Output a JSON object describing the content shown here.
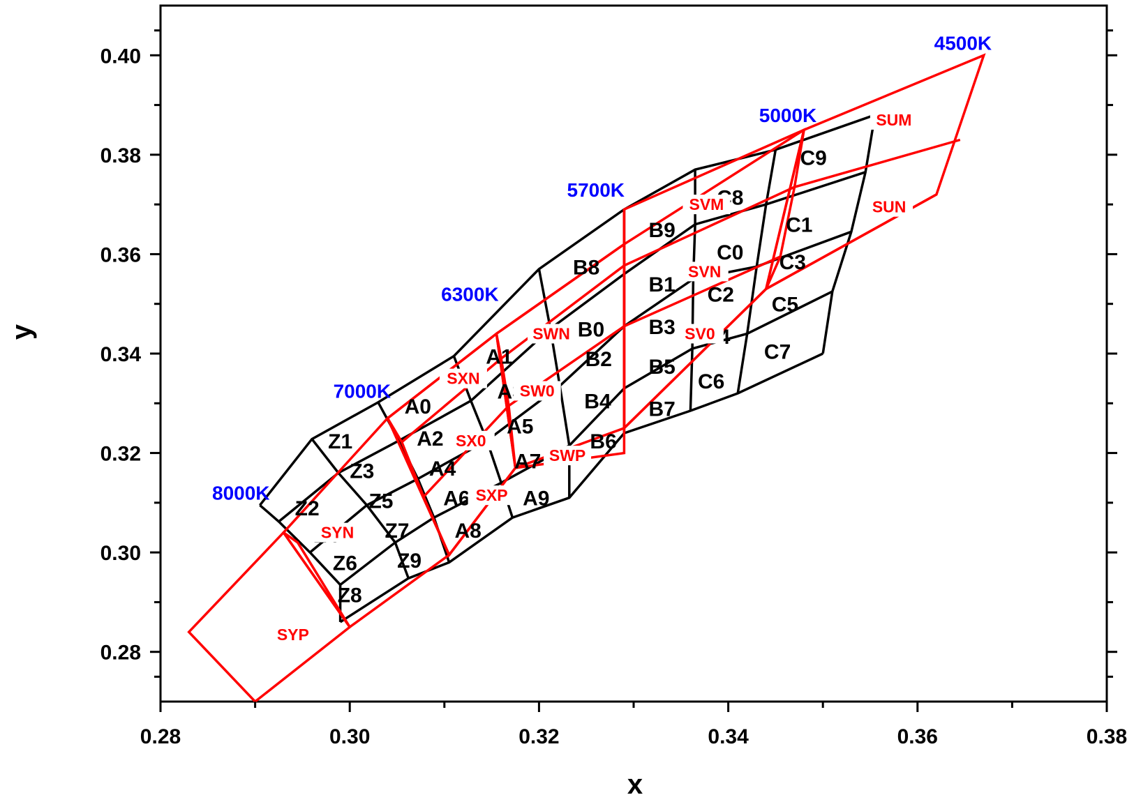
{
  "chart_data": {
    "type": "scatter",
    "title": "",
    "xlabel": "x",
    "ylabel": "y",
    "xlim": [
      0.28,
      0.38
    ],
    "ylim": [
      0.27,
      0.41
    ],
    "x_ticks": [
      "0.28",
      "0.30",
      "0.32",
      "0.34",
      "0.36",
      "0.38"
    ],
    "y_ticks": [
      "0.28",
      "0.30",
      "0.32",
      "0.34",
      "0.36",
      "0.38",
      "0.40"
    ],
    "x_tick_values": [
      0.28,
      0.3,
      0.32,
      0.34,
      0.36,
      0.38
    ],
    "y_tick_values": [
      0.28,
      0.3,
      0.32,
      0.34,
      0.36,
      0.38,
      0.4
    ],
    "grid": false,
    "colors": {
      "bins": "#000000",
      "regions": "#ff0000",
      "cct_labels": "#0000ff"
    },
    "series": [
      {
        "name": "bins",
        "columns": [
          [
            [
              0.2905,
              0.3095
            ],
            [
              0.2925,
              0.3062
            ],
            [
              0.2958,
              0.3
            ],
            [
              0.299,
              0.2935
            ],
            [
              0.299,
              0.286
            ]
          ],
          [
            [
              0.296,
              0.3228
            ],
            [
              0.2988,
              0.316
            ],
            [
              0.3018,
              0.3095
            ],
            [
              0.3048,
              0.302
            ],
            [
              0.3062,
              0.2948
            ]
          ],
          [
            [
              0.303,
              0.3302
            ],
            [
              0.3052,
              0.3225
            ],
            [
              0.3072,
              0.3148
            ],
            [
              0.3089,
              0.307
            ],
            [
              0.3105,
              0.298
            ]
          ],
          [
            [
              0.311,
              0.3395
            ],
            [
              0.3128,
              0.3305
            ],
            [
              0.3145,
              0.3225
            ],
            [
              0.316,
              0.314
            ],
            [
              0.3172,
              0.307
            ]
          ],
          [
            [
              0.32,
              0.357
            ],
            [
              0.3212,
              0.345
            ],
            [
              0.3222,
              0.3335
            ],
            [
              0.3232,
              0.3215
            ],
            [
              0.3232,
              0.311
            ]
          ],
          [
            [
              0.329,
              0.369
            ],
            [
              0.329,
              0.356
            ],
            [
              0.329,
              0.3455
            ],
            [
              0.329,
              0.333
            ],
            [
              0.329,
              0.324
            ]
          ],
          [
            [
              0.3365,
              0.377
            ],
            [
              0.3365,
              0.366
            ],
            [
              0.3363,
              0.355
            ],
            [
              0.3362,
              0.341
            ],
            [
              0.336,
              0.3285
            ]
          ],
          [
            [
              0.345,
              0.381
            ],
            [
              0.344,
              0.37
            ],
            [
              0.343,
              0.3575
            ],
            [
              0.342,
              0.344
            ],
            [
              0.341,
              0.332
            ]
          ],
          [
            [
              0.3555,
              0.388
            ],
            [
              0.3545,
              0.3765
            ],
            [
              0.353,
              0.3645
            ],
            [
              0.351,
              0.3525
            ],
            [
              0.35,
              0.34
            ]
          ]
        ]
      },
      {
        "name": "regions",
        "polygons": [
          [
            [
              0.283,
              0.284
            ],
            [
              0.293,
              0.304
            ],
            [
              0.3,
              0.285
            ],
            [
              0.29,
              0.27
            ]
          ],
          [
            [
              0.293,
              0.304
            ],
            [
              0.304,
              0.327
            ],
            [
              0.3105,
              0.2995
            ],
            [
              0.3,
              0.285
            ]
          ],
          [
            [
              0.304,
              0.327
            ],
            [
              0.3155,
              0.344
            ],
            [
              0.3175,
              0.317
            ],
            [
              0.3105,
              0.2995
            ]
          ],
          [
            [
              0.3155,
              0.344
            ],
            [
              0.329,
              0.362
            ],
            [
              0.329,
              0.32
            ],
            [
              0.3175,
              0.317
            ]
          ],
          [
            [
              0.329,
              0.369
            ],
            [
              0.348,
              0.385
            ],
            [
              0.344,
              0.353
            ],
            [
              0.329,
              0.325
            ]
          ],
          [
            [
              0.348,
              0.385
            ],
            [
              0.367,
              0.4
            ],
            [
              0.362,
              0.372
            ],
            [
              0.344,
              0.353
            ]
          ]
        ],
        "dividers": [
          [
            [
              0.293,
              0.304
            ],
            [
              0.2945,
              0.302
            ],
            [
              0.3,
              0.285
            ]
          ],
          [
            [
              0.304,
              0.327
            ],
            [
              0.3055,
              0.3222
            ],
            [
              0.3078,
              0.3112
            ],
            [
              0.3105,
              0.2995
            ]
          ],
          [
            [
              0.3155,
              0.344
            ],
            [
              0.316,
              0.339
            ],
            [
              0.3168,
              0.3295
            ],
            [
              0.3175,
              0.317
            ]
          ],
          [
            [
              0.329,
              0.369
            ],
            [
              0.329,
              0.3577
            ],
            [
              0.329,
              0.3455
            ],
            [
              0.329,
              0.325
            ]
          ],
          [
            [
              0.348,
              0.385
            ],
            [
              0.347,
              0.3735
            ],
            [
              0.3455,
              0.3595
            ],
            [
              0.344,
              0.353
            ]
          ],
          [
            [
              0.304,
              0.327
            ],
            [
              0.3155,
              0.344
            ],
            [
              0.329,
              0.362
            ],
            [
              0.348,
              0.385
            ]
          ],
          [
            [
              0.3055,
              0.3222
            ],
            [
              0.316,
              0.339
            ],
            [
              0.329,
              0.3577
            ],
            [
              0.347,
              0.3735
            ],
            [
              0.3645,
              0.383
            ]
          ],
          [
            [
              0.3078,
              0.3112
            ],
            [
              0.3168,
              0.3295
            ],
            [
              0.329,
              0.3455
            ],
            [
              0.3455,
              0.3595
            ]
          ],
          [
            [
              0.3105,
              0.2995
            ],
            [
              0.3175,
              0.317
            ],
            [
              0.329,
              0.325
            ],
            [
              0.344,
              0.353
            ],
            [
              0.362,
              0.372
            ]
          ]
        ]
      }
    ],
    "bin_labels": [
      {
        "text": "Z2",
        "x": 0.2955,
        "y": 0.309
      },
      {
        "text": "Z4",
        "x": 0.2975,
        "y": 0.3035
      },
      {
        "text": "Z6",
        "x": 0.2995,
        "y": 0.298
      },
      {
        "text": "Z8",
        "x": 0.3,
        "y": 0.2915
      },
      {
        "text": "Z1",
        "x": 0.299,
        "y": 0.3225
      },
      {
        "text": "Z3",
        "x": 0.3013,
        "y": 0.3165
      },
      {
        "text": "Z5",
        "x": 0.3033,
        "y": 0.3105
      },
      {
        "text": "Z7",
        "x": 0.305,
        "y": 0.3045
      },
      {
        "text": "Z9",
        "x": 0.3063,
        "y": 0.2985
      },
      {
        "text": "A0",
        "x": 0.3072,
        "y": 0.3295
      },
      {
        "text": "A2",
        "x": 0.3085,
        "y": 0.323
      },
      {
        "text": "A4",
        "x": 0.3098,
        "y": 0.317
      },
      {
        "text": "A6",
        "x": 0.3113,
        "y": 0.311
      },
      {
        "text": "A8",
        "x": 0.3125,
        "y": 0.3045
      },
      {
        "text": "A1",
        "x": 0.3158,
        "y": 0.3395
      },
      {
        "text": "A3",
        "x": 0.317,
        "y": 0.3325
      },
      {
        "text": "A5",
        "x": 0.318,
        "y": 0.3255
      },
      {
        "text": "A7",
        "x": 0.3188,
        "y": 0.3185
      },
      {
        "text": "A9",
        "x": 0.3197,
        "y": 0.311
      },
      {
        "text": "B8",
        "x": 0.325,
        "y": 0.3575
      },
      {
        "text": "B0",
        "x": 0.3255,
        "y": 0.345
      },
      {
        "text": "B2",
        "x": 0.3263,
        "y": 0.339
      },
      {
        "text": "B4",
        "x": 0.3262,
        "y": 0.3305
      },
      {
        "text": "B6",
        "x": 0.3268,
        "y": 0.3225
      },
      {
        "text": "B9",
        "x": 0.333,
        "y": 0.365
      },
      {
        "text": "B1",
        "x": 0.333,
        "y": 0.354
      },
      {
        "text": "B3",
        "x": 0.333,
        "y": 0.3455
      },
      {
        "text": "B5",
        "x": 0.333,
        "y": 0.3375
      },
      {
        "text": "B7",
        "x": 0.333,
        "y": 0.329
      },
      {
        "text": "C8",
        "x": 0.3402,
        "y": 0.3715
      },
      {
        "text": "C0",
        "x": 0.3402,
        "y": 0.3605
      },
      {
        "text": "C2",
        "x": 0.3392,
        "y": 0.352
      },
      {
        "text": "C4",
        "x": 0.3388,
        "y": 0.3435
      },
      {
        "text": "C6",
        "x": 0.3382,
        "y": 0.3345
      },
      {
        "text": "C9",
        "x": 0.349,
        "y": 0.3795
      },
      {
        "text": "C1",
        "x": 0.3475,
        "y": 0.366
      },
      {
        "text": "C3",
        "x": 0.3468,
        "y": 0.3585
      },
      {
        "text": "C5",
        "x": 0.346,
        "y": 0.35
      },
      {
        "text": "C7",
        "x": 0.3452,
        "y": 0.3405
      }
    ],
    "region_labels": [
      {
        "text": "SYP",
        "x": 0.294,
        "y": 0.2835
      },
      {
        "text": "SYN",
        "x": 0.2987,
        "y": 0.304
      },
      {
        "text": "SXN",
        "x": 0.312,
        "y": 0.335
      },
      {
        "text": "SX0",
        "x": 0.3128,
        "y": 0.3225
      },
      {
        "text": "SXP",
        "x": 0.315,
        "y": 0.3115
      },
      {
        "text": "SWN",
        "x": 0.3213,
        "y": 0.344
      },
      {
        "text": "SW0",
        "x": 0.3198,
        "y": 0.3325
      },
      {
        "text": "SWP",
        "x": 0.323,
        "y": 0.3195
      },
      {
        "text": "SVM",
        "x": 0.3377,
        "y": 0.37
      },
      {
        "text": "SVN",
        "x": 0.3375,
        "y": 0.3565
      },
      {
        "text": "SV0",
        "x": 0.337,
        "y": 0.344
      },
      {
        "text": "SUM",
        "x": 0.3575,
        "y": 0.387
      },
      {
        "text": "SUN",
        "x": 0.357,
        "y": 0.3695
      }
    ],
    "cct_labels": [
      {
        "text": "8000K",
        "x": 0.2885,
        "y": 0.312
      },
      {
        "text": "7000K",
        "x": 0.3013,
        "y": 0.3325
      },
      {
        "text": "6300K",
        "x": 0.3127,
        "y": 0.352
      },
      {
        "text": "5700K",
        "x": 0.326,
        "y": 0.373
      },
      {
        "text": "5000K",
        "x": 0.3463,
        "y": 0.388
      },
      {
        "text": "4500K",
        "x": 0.3648,
        "y": 0.4025
      }
    ]
  }
}
